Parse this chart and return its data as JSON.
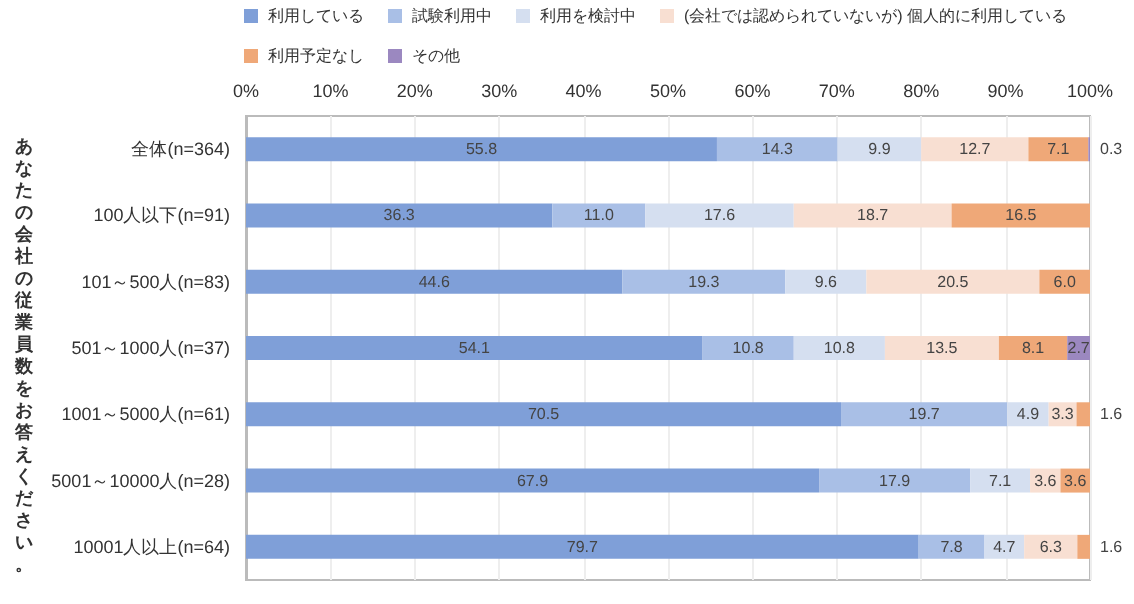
{
  "chart_data": {
    "type": "bar",
    "orientation": "horizontal",
    "stacked": true,
    "ylabel": "あなたの会社の従業員数をお答えください。",
    "categories": [
      "全体(n=364)",
      "100人以下(n=91)",
      "101～500人(n=83)",
      "501～1000人(n=37)",
      "1001～5000人(n=61)",
      "5001～10000人(n=28)",
      "10001人以上(n=64)"
    ],
    "series": [
      {
        "name": "利用している",
        "color": "#7f9fd8",
        "values": [
          55.8,
          36.3,
          44.6,
          54.1,
          70.5,
          67.9,
          79.7
        ],
        "value_labels": [
          "55.8",
          "36.3",
          "44.6",
          "54.1",
          "70.5",
          "67.9",
          "79.7"
        ]
      },
      {
        "name": "試験利用中",
        "color": "#a9bfe6",
        "values": [
          14.3,
          11.0,
          19.3,
          10.8,
          19.7,
          17.9,
          7.8
        ],
        "value_labels": [
          "14.3",
          "11.0",
          "19.3",
          "10.8",
          "19.7",
          "17.9",
          "7.8"
        ]
      },
      {
        "name": "利用を検討中",
        "color": "#d5dff0",
        "values": [
          9.9,
          17.6,
          9.6,
          10.8,
          4.9,
          7.1,
          4.7
        ],
        "value_labels": [
          "9.9",
          "17.6",
          "9.6",
          "10.8",
          "4.9",
          "7.1",
          "4.7"
        ]
      },
      {
        "name": "(会社では認められていないが) 個人的に利用している",
        "color": "#f8dfd2",
        "values": [
          12.7,
          18.7,
          20.5,
          13.5,
          3.3,
          3.6,
          6.3
        ],
        "value_labels": [
          "12.7",
          "18.7",
          "20.5",
          "13.5",
          "3.3",
          "3.6",
          "6.3"
        ]
      },
      {
        "name": "利用予定なし",
        "color": "#efa878",
        "values": [
          7.1,
          16.5,
          6.0,
          8.1,
          1.6,
          3.6,
          1.6
        ],
        "value_labels": [
          "7.1",
          "16.5",
          "6.0",
          "8.1",
          "1.6",
          "3.6",
          "1.6"
        ]
      },
      {
        "name": "その他",
        "color": "#9b88c0",
        "values": [
          0.3,
          null,
          null,
          2.7,
          null,
          null,
          null
        ],
        "value_labels": [
          "0.3",
          null,
          null,
          "2.7",
          null,
          null,
          null
        ]
      }
    ],
    "xlim": [
      0,
      100
    ],
    "xticks": [
      {
        "value": 0,
        "label": "0%"
      },
      {
        "value": 10,
        "label": "10%"
      },
      {
        "value": 20,
        "label": "20%"
      },
      {
        "value": 30,
        "label": "30%"
      },
      {
        "value": 40,
        "label": "40%"
      },
      {
        "value": 50,
        "label": "50%"
      },
      {
        "value": 60,
        "label": "60%"
      },
      {
        "value": 70,
        "label": "70%"
      },
      {
        "value": 80,
        "label": "80%"
      },
      {
        "value": 90,
        "label": "90%"
      },
      {
        "value": 100,
        "label": "100%"
      }
    ],
    "grid": "x",
    "legend": "top"
  }
}
